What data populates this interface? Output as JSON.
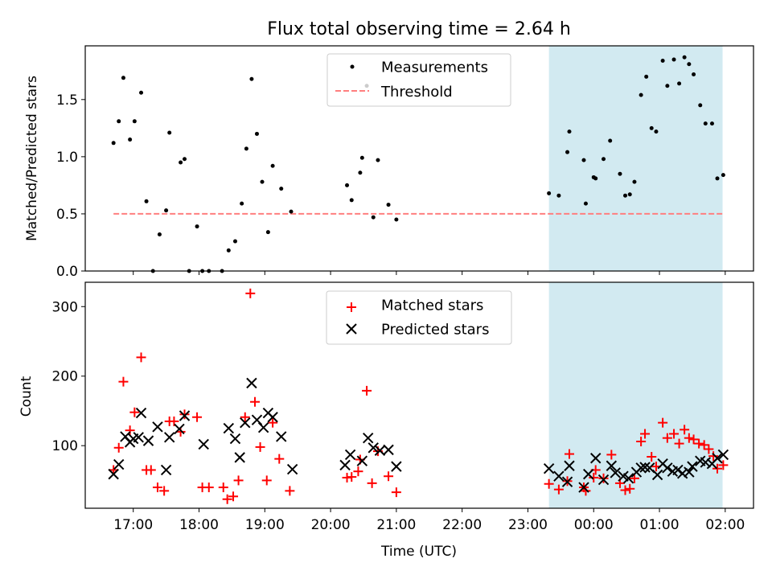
{
  "chart_data": {
    "title": "Flux total observing time = 2.64 h",
    "x_unit": "hours after 16:00 UTC (times past midnight continue beyond 24:00)",
    "xlim": [
      16.27,
      26.43
    ],
    "xticks": [
      {
        "value": 17,
        "label": "17:00"
      },
      {
        "value": 18,
        "label": "18:00"
      },
      {
        "value": 19,
        "label": "19:00"
      },
      {
        "value": 20,
        "label": "20:00"
      },
      {
        "value": 21,
        "label": "21:00"
      },
      {
        "value": 22,
        "label": "22:00"
      },
      {
        "value": 23,
        "label": "23:00"
      },
      {
        "value": 24,
        "label": "00:00"
      },
      {
        "value": 25,
        "label": "01:00"
      },
      {
        "value": 26,
        "label": "02:00"
      }
    ],
    "xlabel": "Time (UTC)",
    "highlight_span": {
      "start": 23.32,
      "end": 25.96,
      "color": "#add8e6"
    },
    "top": {
      "type": "scatter",
      "ylabel": "Matched/Predicted stars",
      "ylim": [
        0,
        1.97
      ],
      "yticks": [
        0.0,
        0.5,
        1.0,
        1.5
      ],
      "ytick_labels": [
        "0.0",
        "0.5",
        "1.0",
        "1.5"
      ],
      "legend_position": "top-center",
      "threshold": {
        "name": "Threshold",
        "value": 0.5,
        "x_range": [
          16.7,
          25.98
        ],
        "color": "#ff7f7f"
      },
      "measurements": {
        "name": "Measurements",
        "color": "#000000",
        "x": [
          16.7,
          16.78,
          16.85,
          16.95,
          17.02,
          17.12,
          17.2,
          17.3,
          17.4,
          17.5,
          17.55,
          17.72,
          17.78,
          17.85,
          17.97,
          18.05,
          18.15,
          18.35,
          18.45,
          18.55,
          18.65,
          18.72,
          18.8,
          18.88,
          18.96,
          19.05,
          19.12,
          19.25,
          19.4,
          20.25,
          20.32,
          20.45,
          20.48,
          20.55,
          20.65,
          20.72,
          20.88,
          21.0,
          23.32,
          23.47,
          23.6,
          23.63,
          23.85,
          23.88,
          24.0,
          24.03,
          24.15,
          24.25,
          24.4,
          24.48,
          24.55,
          24.62,
          24.72,
          24.8,
          24.88,
          24.95,
          25.05,
          25.12,
          25.22,
          25.3,
          25.38,
          25.45,
          25.52,
          25.62,
          25.7,
          25.8,
          25.88,
          25.97
        ],
        "y": [
          1.12,
          1.31,
          1.69,
          1.15,
          1.31,
          1.56,
          0.61,
          0.0,
          0.32,
          0.53,
          1.21,
          0.95,
          0.98,
          0.0,
          0.39,
          0.0,
          0.0,
          0.0,
          0.18,
          0.26,
          0.59,
          1.07,
          1.68,
          1.2,
          0.78,
          0.34,
          0.92,
          0.72,
          0.52,
          0.75,
          0.62,
          0.86,
          0.99,
          1.62,
          0.47,
          0.97,
          0.58,
          0.45,
          0.68,
          0.66,
          1.04,
          1.22,
          0.97,
          0.59,
          0.82,
          0.81,
          0.98,
          1.14,
          0.85,
          0.66,
          0.67,
          0.78,
          1.54,
          1.7,
          1.25,
          1.22,
          1.84,
          1.62,
          1.85,
          1.64,
          1.87,
          1.81,
          1.72,
          1.45,
          1.29,
          1.29,
          0.81,
          0.84
        ]
      }
    },
    "bottom": {
      "type": "scatter",
      "ylabel": "Count",
      "ylim": [
        10,
        335
      ],
      "yticks": [
        100,
        200,
        300
      ],
      "ytick_labels": [
        "100",
        "200",
        "300"
      ],
      "legend_position": "top-center",
      "series": [
        {
          "name": "Matched stars",
          "marker": "+",
          "color": "#ff0000",
          "x": [
            16.7,
            16.78,
            16.85,
            16.95,
            17.02,
            17.12,
            17.2,
            17.27,
            17.37,
            17.47,
            17.55,
            17.62,
            17.72,
            17.78,
            17.97,
            18.05,
            18.15,
            18.37,
            18.43,
            18.52,
            18.6,
            18.7,
            18.78,
            18.85,
            18.93,
            19.03,
            19.12,
            19.22,
            19.38,
            20.25,
            20.32,
            20.42,
            20.45,
            20.55,
            20.63,
            20.72,
            20.88,
            21.0,
            23.32,
            23.47,
            23.6,
            23.63,
            23.85,
            23.88,
            24.0,
            24.03,
            24.15,
            24.27,
            24.4,
            24.48,
            24.55,
            24.62,
            24.72,
            24.78,
            24.88,
            24.95,
            25.05,
            25.12,
            25.22,
            25.3,
            25.38,
            25.45,
            25.52,
            25.6,
            25.68,
            25.75,
            25.82,
            25.88,
            25.97
          ],
          "y": [
            65,
            97,
            192,
            122,
            148,
            227,
            65,
            65,
            40,
            35,
            135,
            135,
            120,
            145,
            141,
            40,
            40,
            40,
            23,
            27,
            50,
            141,
            319,
            163,
            98,
            50,
            133,
            81,
            35,
            54,
            55,
            63,
            80,
            179,
            46,
            92,
            56,
            33,
            45,
            37,
            49,
            88,
            40,
            35,
            54,
            65,
            53,
            87,
            46,
            36,
            38,
            53,
            106,
            117,
            84,
            70,
            133,
            111,
            117,
            103,
            123,
            111,
            109,
            103,
            101,
            95,
            85,
            67,
            72
          ]
        },
        {
          "name": "Predicted stars",
          "marker": "x",
          "color": "#000000",
          "x": [
            16.7,
            16.78,
            16.88,
            16.95,
            17.0,
            17.08,
            17.12,
            17.23,
            17.37,
            17.5,
            17.55,
            17.7,
            17.78,
            18.07,
            18.45,
            18.55,
            18.62,
            18.7,
            18.8,
            18.88,
            18.98,
            19.05,
            19.12,
            19.25,
            19.42,
            20.22,
            20.3,
            20.48,
            20.57,
            20.65,
            20.75,
            20.88,
            21.0,
            23.32,
            23.47,
            23.6,
            23.63,
            23.85,
            23.92,
            24.03,
            24.15,
            24.27,
            24.33,
            24.45,
            24.53,
            24.65,
            24.72,
            24.78,
            24.85,
            24.97,
            25.05,
            25.12,
            25.2,
            25.28,
            25.35,
            25.45,
            25.5,
            25.62,
            25.7,
            25.8,
            25.88,
            25.97
          ],
          "y": [
            59,
            73,
            113,
            105,
            110,
            112,
            147,
            107,
            127,
            65,
            112,
            124,
            143,
            102,
            125,
            110,
            83,
            133,
            190,
            137,
            126,
            147,
            141,
            113,
            66,
            72,
            87,
            78,
            111,
            97,
            93,
            94,
            70,
            67,
            56,
            48,
            71,
            40,
            59,
            82,
            51,
            71,
            61,
            56,
            53,
            62,
            68,
            69,
            68,
            58,
            74,
            68,
            63,
            65,
            60,
            62,
            70,
            78,
            76,
            74,
            82,
            87
          ]
        }
      ]
    }
  }
}
